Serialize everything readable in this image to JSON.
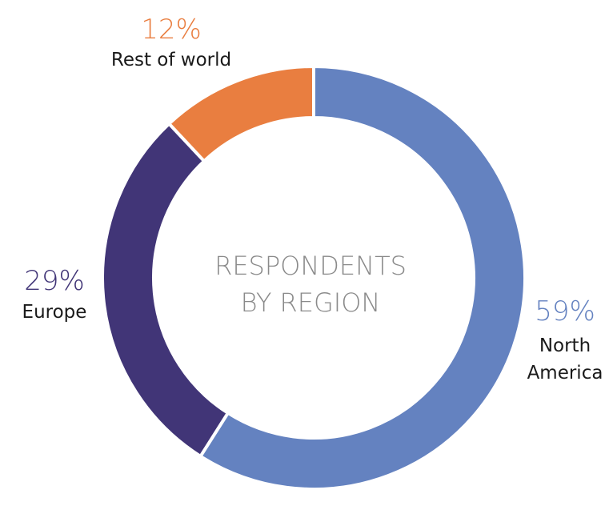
{
  "chart_data": {
    "type": "pie",
    "subtype": "donut",
    "center_label": [
      "RESPONDENTS",
      "BY REGION"
    ],
    "slices": [
      {
        "label_lines": [
          "North",
          "America"
        ],
        "pct_text": "59%",
        "value": 59,
        "color": "#6482c0"
      },
      {
        "label_lines": [
          "Europe"
        ],
        "pct_text": "29%",
        "value": 29,
        "color": "#413577"
      },
      {
        "label_lines": [
          "Rest of world"
        ],
        "pct_text": "12%",
        "value": 12,
        "color": "#e97e40"
      }
    ]
  }
}
